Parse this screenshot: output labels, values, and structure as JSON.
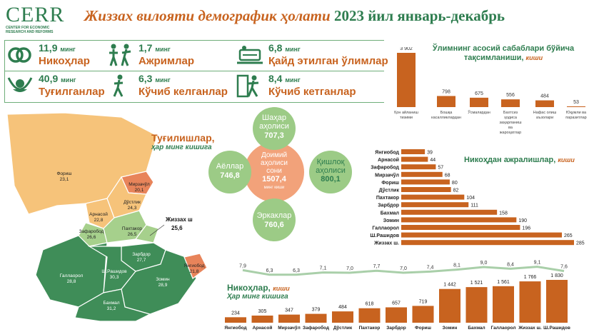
{
  "header": {
    "logo_text": "CERR",
    "logo_sub": "CENTER FOR ECONOMIC RESEARCH AND REFORMS",
    "title": "Жиззах вилояти демографик ҳолати",
    "period": "2023 йил январь-декабрь"
  },
  "stats": [
    {
      "value": "11,9",
      "unit": "минг",
      "label": "Никоҳлар",
      "icon": "rings-icon"
    },
    {
      "value": "1,7",
      "unit": "минг",
      "label": "Ажримлар",
      "icon": "divorce-icon"
    },
    {
      "value": "6,8",
      "unit": "минг",
      "label": "Қайд этилган ўлимлар",
      "icon": "grave-icon"
    },
    {
      "value": "40,9",
      "unit": "минг",
      "label": "Туғилганлар",
      "icon": "baby-icon"
    },
    {
      "value": "6,3",
      "unit": "минг",
      "label": "Кўчиб келганлар",
      "icon": "walk-in-icon"
    },
    {
      "value": "8,4",
      "unit": "минг",
      "label": "Кўчиб кетганлар",
      "icon": "walk-out-icon"
    }
  ],
  "population": {
    "urban_label": "Шаҳар аҳолиси",
    "urban_value": "707,3",
    "rural_label": "Қишлоқ аҳолиси",
    "rural_value": "800,1",
    "female_label": "Аёллар",
    "female_value": "746,8",
    "male_label": "Эркаклар",
    "male_value": "760,6",
    "total_label": "Доимий аҳолиси сони",
    "total_value": "1507,4",
    "total_unit": "минг киши"
  },
  "map": {
    "title": "Туғилишлар,",
    "subtitle": "ҳар минг кишига",
    "colors": {
      "low": "#f6c37a",
      "mid": "#a6d08c",
      "high": "#3f8d58",
      "top": "#e8845a"
    }
  },
  "chart_data": [
    {
      "type": "bar",
      "id": "death-causes",
      "title": "Ўлимнинг асосий сабаблари бўйича тақсимланиши,",
      "unit_label": "киши",
      "categories": [
        "Қон айланиш тизими",
        "Бошқа касалликлардан",
        "Ўсмалардан",
        "Бахтсиз ҳодиса заҳарланиш ва жароҳатлар",
        "Нафас олиш аъзолари",
        "Юқумли ва паразитлар"
      ],
      "values": [
        3902,
        798,
        675,
        556,
        484,
        53
      ],
      "value_labels": [
        "3 902",
        "798",
        "675",
        "556",
        "484",
        "53"
      ],
      "color": "#c8631f"
    },
    {
      "type": "bar",
      "id": "divorces",
      "orientation": "horizontal",
      "title": "Никоҳдан ажралишлар,",
      "unit_label": "киши",
      "categories": [
        "Янгиобод",
        "Арнасой",
        "Зафаробод",
        "Мирзачўл",
        "Фориш",
        "Дўстлик",
        "Пахтакор",
        "Зарбдор",
        "Бахмал",
        "Зомин",
        "Галлаорол",
        "Ш.Рашидов",
        "Жиззах ш."
      ],
      "values": [
        39,
        44,
        57,
        68,
        80,
        82,
        104,
        111,
        158,
        190,
        196,
        265,
        285
      ],
      "color": "#c8631f"
    },
    {
      "type": "bar",
      "id": "marriages",
      "title": "Никоҳлар,",
      "unit_label": "киши",
      "categories": [
        "Янгиобод",
        "Арнасой",
        "Мирзачўл",
        "Зафаробод",
        "Дўстлик",
        "Пахтакор",
        "Зарбдор",
        "Фориш",
        "Зомин",
        "Бахмал",
        "Галлаорол",
        "Жиззах ш.",
        "Ш.Рашидов"
      ],
      "values": [
        234,
        305,
        347,
        379,
        484,
        618,
        657,
        719,
        1442,
        1521,
        1561,
        1766,
        1830
      ],
      "value_labels": [
        "234",
        "305",
        "347",
        "379",
        "484",
        "618",
        "657",
        "719",
        "1 442",
        "1 521",
        "1 561",
        "1 766",
        "1 830"
      ],
      "color": "#c8631f"
    },
    {
      "type": "line",
      "id": "marriages-per-1000",
      "title": "Ҳар минг кишига",
      "categories": [
        "Янгиобод",
        "Арнасой",
        "Мирзачўл",
        "Зафаробод",
        "Дўстлик",
        "Пахтакор",
        "Зарбдор",
        "Фориш",
        "Зомин",
        "Бахмал",
        "Галлаорол",
        "Жиззах ш.",
        "Ш.Рашидов"
      ],
      "values": [
        7.9,
        6.3,
        6.3,
        7.1,
        7.0,
        7.7,
        7.0,
        7.4,
        8.1,
        9.0,
        8.4,
        9.1,
        7.6
      ],
      "value_labels": [
        "7,9",
        "6,3",
        "6,3",
        "7,1",
        "7,0",
        "7,7",
        "7,0",
        "7,4",
        "8,1",
        "9,0",
        "8,4",
        "9,1",
        "7,6"
      ],
      "color": "#a9cfa9"
    },
    {
      "type": "map",
      "id": "births-per-1000",
      "regions": [
        {
          "name": "Фориш",
          "value": "23,1"
        },
        {
          "name": "Мирзачўл",
          "value": "20,1"
        },
        {
          "name": "Арнасой",
          "value": "22,8"
        },
        {
          "name": "Дўстлик",
          "value": "24,3"
        },
        {
          "name": "Зафаробод",
          "value": "26,6"
        },
        {
          "name": "Пахтакор",
          "value": "26,5"
        },
        {
          "name": "Жиззах ш",
          "value": "25,6"
        },
        {
          "name": "Зарбдор",
          "value": "27,7"
        },
        {
          "name": "Галлаорол",
          "value": "28,8"
        },
        {
          "name": "Ш.Рашидов",
          "value": "30,3"
        },
        {
          "name": "Зомин",
          "value": "28,9"
        },
        {
          "name": "Янгиобод",
          "value": "21,8"
        },
        {
          "name": "Бахмал",
          "value": "31,2"
        }
      ]
    }
  ]
}
